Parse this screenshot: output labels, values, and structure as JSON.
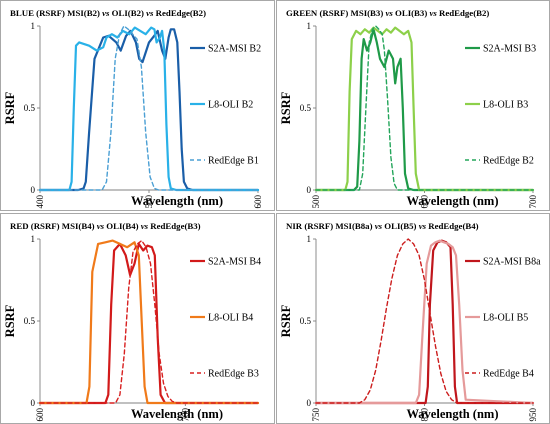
{
  "chart_data": [
    {
      "type": "line",
      "title_parts": [
        "BLUE (RSRF) MSI(B2) ",
        "vs",
        " OLI(B2) ",
        "vs",
        " RedEdge(B2)"
      ],
      "xlabel": "Wavelength (nm)",
      "ylabel": "RSRF",
      "xlim": [
        400,
        600
      ],
      "ylim": [
        0,
        1
      ],
      "xticks": [
        "400",
        "500",
        "600"
      ],
      "yticks": [
        "0",
        "0.5",
        "1"
      ],
      "legend_position": "right",
      "series": [
        {
          "name": "S2A-MSI B2",
          "color": "#1a5ea8",
          "dash": "solid",
          "x": [
            400,
            435,
            440,
            442,
            445,
            450,
            458,
            463,
            470,
            474,
            479,
            483,
            488,
            491,
            494,
            500,
            506,
            508,
            512,
            515,
            518,
            520,
            523,
            526,
            528,
            530,
            532,
            535,
            540,
            600
          ],
          "y": [
            0,
            0,
            0.01,
            0.05,
            0.35,
            0.8,
            0.93,
            0.94,
            0.9,
            0.85,
            0.94,
            0.97,
            0.9,
            0.8,
            0.78,
            0.9,
            0.95,
            0.97,
            0.85,
            0.8,
            0.93,
            0.98,
            0.98,
            0.9,
            0.6,
            0.25,
            0.05,
            0.01,
            0,
            0
          ]
        },
        {
          "name": "L8-OLI B2",
          "color": "#29b1e8",
          "dash": "solid",
          "x": [
            400,
            427,
            429,
            431,
            433,
            436,
            445,
            452,
            458,
            461,
            466,
            471,
            476,
            482,
            487,
            492,
            497,
            502,
            505,
            507,
            510,
            512,
            514,
            516,
            518,
            520,
            525,
            600
          ],
          "y": [
            0,
            0,
            0.05,
            0.5,
            0.88,
            0.9,
            0.88,
            0.85,
            0.87,
            0.93,
            0.95,
            0.93,
            0.97,
            0.95,
            0.99,
            0.97,
            0.95,
            0.99,
            0.98,
            0.9,
            0.93,
            0.97,
            0.85,
            0.4,
            0.08,
            0.01,
            0,
            0
          ]
        },
        {
          "name": "RedEdge B1",
          "color": "#4a9fd4",
          "dash": "dashed",
          "x": [
            400,
            457,
            461,
            465,
            469,
            473,
            477,
            481,
            485,
            489,
            493,
            497,
            501,
            505,
            509,
            600
          ],
          "y": [
            0,
            0,
            0.05,
            0.35,
            0.8,
            0.95,
            1,
            0.98,
            0.95,
            0.92,
            0.75,
            0.35,
            0.08,
            0.01,
            0,
            0
          ]
        }
      ]
    },
    {
      "type": "line",
      "title_parts": [
        "GREEN (RSRF) MSI(B3) ",
        "vs",
        " OLI(B3) ",
        "vs",
        " RedEdge(B2)"
      ],
      "xlabel": "Wavelength (nm)",
      "ylabel": "RSRF",
      "xlim": [
        500,
        700
      ],
      "ylim": [
        0,
        1
      ],
      "xticks": [
        "500",
        "600",
        "700"
      ],
      "yticks": [
        "0",
        "0.5",
        "1"
      ],
      "legend_position": "right",
      "series": [
        {
          "name": "S2A-MSI B3",
          "color": "#1f9a48",
          "dash": "solid",
          "x": [
            500,
            535,
            538,
            540,
            542,
            544,
            547,
            550,
            553,
            556,
            559,
            563,
            567,
            571,
            573,
            575,
            578,
            580,
            582,
            585,
            590,
            700
          ],
          "y": [
            0,
            0,
            0.02,
            0.3,
            0.8,
            0.92,
            0.85,
            0.9,
            0.98,
            0.9,
            0.8,
            0.75,
            0.85,
            0.8,
            0.65,
            0.75,
            0.8,
            0.5,
            0.1,
            0.01,
            0,
            0
          ]
        },
        {
          "name": "L8-OLI B3",
          "color": "#8dd04a",
          "dash": "solid",
          "x": [
            500,
            527,
            529,
            531,
            533,
            537,
            541,
            545,
            549,
            553,
            557,
            561,
            565,
            569,
            573,
            577,
            581,
            585,
            588,
            590,
            592,
            595,
            700
          ],
          "y": [
            0,
            0,
            0.05,
            0.6,
            0.92,
            0.97,
            0.95,
            0.98,
            0.96,
            0.99,
            0.97,
            0.95,
            0.98,
            0.96,
            0.99,
            0.97,
            0.95,
            0.97,
            0.9,
            0.5,
            0.1,
            0,
            0
          ]
        },
        {
          "name": "RedEdge B2",
          "color": "#23a55a",
          "dash": "dashed",
          "x": [
            500,
            540,
            543,
            546,
            549,
            552,
            555,
            558,
            561,
            563,
            566,
            569,
            572,
            575,
            578,
            700
          ],
          "y": [
            0,
            0,
            0.1,
            0.5,
            0.9,
            0.98,
            1,
            0.98,
            0.95,
            0.85,
            0.55,
            0.2,
            0.04,
            0,
            0,
            0
          ]
        }
      ]
    },
    {
      "type": "line",
      "title_parts": [
        "RED (RSRF) MSI(B4) ",
        "vs",
        " OLI(B4) ",
        "vs",
        " RedEdge(B3)"
      ],
      "xlabel": "Wavelength (nm)",
      "ylabel": "RSRF",
      "xlim": [
        600,
        750
      ],
      "ylim": [
        0,
        1
      ],
      "xticks": [
        "600",
        "700"
      ],
      "yticks": [
        "0",
        "0.5",
        "1"
      ],
      "legend_position": "right",
      "series": [
        {
          "name": "S2A-MSI B4",
          "color": "#d21a1a",
          "dash": "solid",
          "x": [
            600,
            645,
            647,
            649,
            651,
            655,
            659,
            662,
            665,
            668,
            671,
            674,
            677,
            679,
            681,
            683,
            686,
            750
          ],
          "y": [
            0,
            0,
            0.05,
            0.6,
            0.93,
            0.97,
            0.9,
            0.78,
            0.85,
            0.97,
            0.93,
            0.96,
            0.95,
            0.9,
            0.4,
            0.05,
            0,
            0
          ]
        },
        {
          "name": "L8-OLI B4",
          "color": "#f07a1a",
          "dash": "solid",
          "x": [
            600,
            632,
            634,
            636,
            640,
            645,
            650,
            655,
            660,
            665,
            668,
            670,
            672,
            674,
            750
          ],
          "y": [
            0,
            0,
            0.1,
            0.8,
            0.97,
            0.98,
            0.99,
            0.97,
            0.95,
            0.98,
            0.9,
            0.5,
            0.1,
            0,
            0
          ]
        },
        {
          "name": "RedEdge B3",
          "color": "#d82020",
          "dash": "dashed",
          "x": [
            600,
            652,
            655,
            658,
            661,
            664,
            667,
            670,
            673,
            676,
            679,
            682,
            685,
            688,
            691,
            694,
            750
          ],
          "y": [
            0,
            0,
            0.05,
            0.3,
            0.7,
            0.92,
            0.97,
            0.99,
            0.95,
            0.85,
            0.6,
            0.3,
            0.12,
            0.04,
            0.01,
            0,
            0
          ]
        }
      ]
    },
    {
      "type": "line",
      "title_parts": [
        "NIR (RSRF) MSI(B8a) ",
        "vs",
        " OLI(B5) ",
        "vs",
        " RedEdge(B4)"
      ],
      "xlabel": "Wavelength (nm)",
      "ylabel": "RSRF",
      "xlim": [
        750,
        950
      ],
      "ylim": [
        0,
        1
      ],
      "xticks": [
        "750",
        "850",
        "950"
      ],
      "yticks": [
        "0",
        "0.5",
        "1"
      ],
      "legend_position": "right",
      "series": [
        {
          "name": "S2A-MSI B8a",
          "color": "#c0161c",
          "dash": "solid",
          "x": [
            750,
            851,
            853,
            855,
            858,
            862,
            866,
            870,
            874,
            876,
            878,
            880,
            950
          ],
          "y": [
            0,
            0,
            0.1,
            0.6,
            0.93,
            0.98,
            0.99,
            0.98,
            0.95,
            0.6,
            0.1,
            0,
            0
          ]
        },
        {
          "name": "L8-OLI B5",
          "color": "#e59a9a",
          "dash": "solid",
          "x": [
            750,
            842,
            845,
            848,
            852,
            856,
            860,
            864,
            868,
            872,
            876,
            879,
            882,
            885,
            888,
            950
          ],
          "y": [
            0,
            0,
            0.05,
            0.4,
            0.85,
            0.96,
            0.98,
            0.99,
            0.98,
            0.97,
            0.95,
            0.9,
            0.6,
            0.2,
            0.02,
            0
          ]
        },
        {
          "name": "RedEdge B4",
          "color": "#cc1d1d",
          "dash": "dashed",
          "x": [
            750,
            790,
            795,
            800,
            805,
            810,
            815,
            820,
            825,
            830,
            835,
            840,
            845,
            850,
            855,
            860,
            865,
            870,
            875,
            880,
            950
          ],
          "y": [
            0,
            0,
            0.02,
            0.08,
            0.2,
            0.38,
            0.58,
            0.76,
            0.9,
            0.97,
            1,
            0.97,
            0.9,
            0.75,
            0.55,
            0.35,
            0.18,
            0.07,
            0.02,
            0,
            0
          ]
        }
      ]
    }
  ]
}
